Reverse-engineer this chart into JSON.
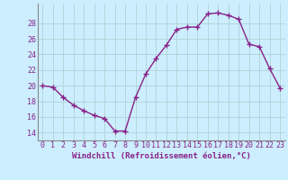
{
  "x": [
    0,
    1,
    2,
    3,
    4,
    5,
    6,
    7,
    8,
    9,
    10,
    11,
    12,
    13,
    14,
    15,
    16,
    17,
    18,
    19,
    20,
    21,
    22,
    23
  ],
  "y": [
    20.0,
    19.8,
    18.5,
    17.5,
    16.8,
    16.2,
    15.8,
    14.2,
    14.2,
    18.5,
    21.5,
    23.5,
    25.2,
    27.2,
    27.5,
    27.5,
    29.2,
    29.3,
    29.0,
    28.5,
    25.3,
    25.0,
    22.2,
    19.7
  ],
  "line_color": "#882288",
  "marker": "+",
  "marker_size": 4,
  "line_width": 1.0,
  "bg_color": "#cceeff",
  "grid_color": "#aacccc",
  "tick_color": "#882288",
  "label_color": "#882288",
  "xlabel": "Windchill (Refroidissement éolien,°C)",
  "xlim": [
    -0.5,
    23.5
  ],
  "ylim": [
    13.0,
    30.5
  ],
  "yticks": [
    14,
    16,
    18,
    20,
    22,
    24,
    26,
    28
  ],
  "xticks": [
    0,
    1,
    2,
    3,
    4,
    5,
    6,
    7,
    8,
    9,
    10,
    11,
    12,
    13,
    14,
    15,
    16,
    17,
    18,
    19,
    20,
    21,
    22,
    23
  ],
  "xlabel_fontsize": 6.5,
  "tick_fontsize": 6.0
}
